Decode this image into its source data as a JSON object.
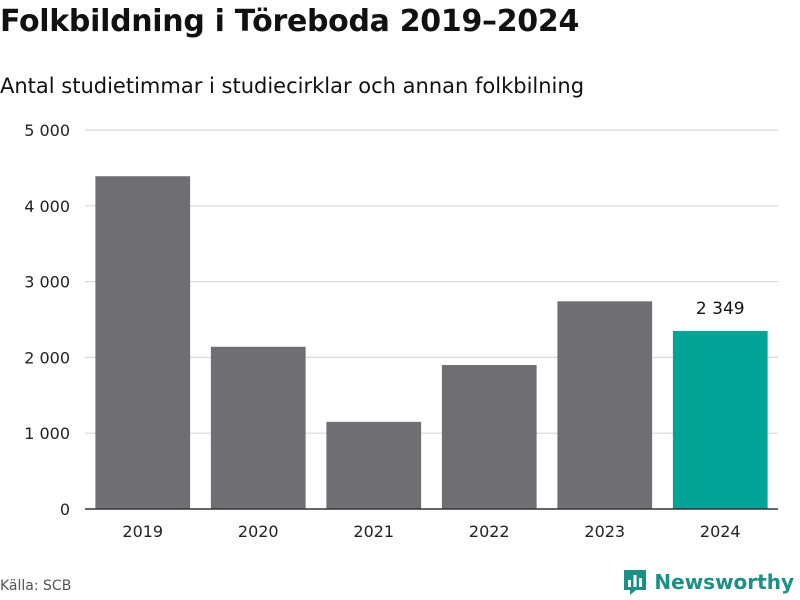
{
  "header": {
    "title": "Folkbildning i Töreboda 2019–2024",
    "subtitle": "Antal studietimmar i studiecirklar och annan folkbilning"
  },
  "footer": {
    "source": "Källa: SCB",
    "brand": "Newsworthy",
    "brand_icon": "newsworthy-logo-icon"
  },
  "colors": {
    "bar": "#6f6e73",
    "highlight": "#00a396",
    "grid": "#d9d9d9",
    "axis": "#333333"
  },
  "chart_data": {
    "type": "bar",
    "title": "Folkbildning i Töreboda 2019–2024",
    "subtitle": "Antal studietimmar i studiecirklar och annan folkbilning",
    "categories": [
      "2019",
      "2020",
      "2021",
      "2022",
      "2023",
      "2024"
    ],
    "values": [
      4390,
      2140,
      1150,
      1900,
      2740,
      2349
    ],
    "highlight_index": 5,
    "data_labels": [
      {
        "index": 5,
        "text": "2 349"
      }
    ],
    "yticks": [
      0,
      1000,
      2000,
      3000,
      4000,
      5000
    ],
    "ytick_labels": [
      "0",
      "1 000",
      "2 000",
      "3 000",
      "4 000",
      "5 000"
    ],
    "ylim": [
      0,
      5000
    ],
    "grid": true,
    "xlabel": "",
    "ylabel": ""
  }
}
